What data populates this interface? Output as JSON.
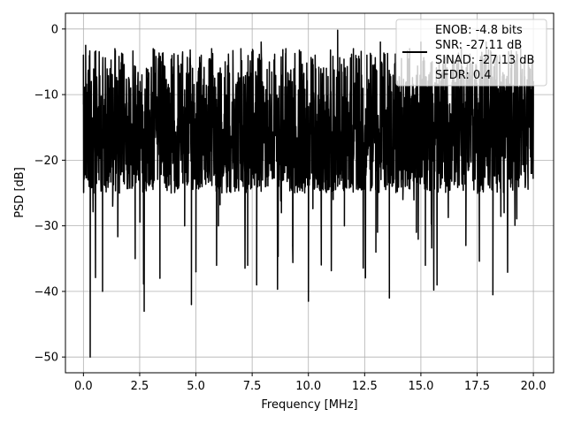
{
  "chart_data": {
    "type": "line",
    "xlabel": "Frequency [MHz]",
    "ylabel": "PSD [dB]",
    "xlim": [
      -0.8,
      20.9
    ],
    "ylim": [
      -52.4,
      2.4
    ],
    "xticks": [
      0.0,
      2.5,
      5.0,
      7.5,
      10.0,
      12.5,
      15.0,
      17.5,
      20.0
    ],
    "xtick_labels": [
      "0.0",
      "2.5",
      "5.0",
      "7.5",
      "10.0",
      "12.5",
      "15.0",
      "17.5",
      "20.0"
    ],
    "yticks": [
      0,
      -10,
      -20,
      -30,
      -40,
      -50
    ],
    "ytick_labels": [
      "0",
      "−10",
      "−20",
      "−30",
      "−40",
      "−50"
    ],
    "grid": true,
    "legend_position": "top-right",
    "legend": {
      "lines": [
        "ENOB: -4.8 bits",
        "SNR: -27.11 dB",
        "SINAD: -27.13 dB",
        "SFDR: 0.4"
      ]
    },
    "series": [
      {
        "color": "#000000",
        "description_level": "noise floor fluctuating mostly between -25 and -2 dB across 0-20 MHz",
        "x": [
          0.0,
          0.05,
          0.1,
          0.2,
          0.3,
          0.35,
          0.5,
          0.7,
          0.85,
          1.0,
          1.05,
          1.3,
          1.4,
          1.6,
          1.8,
          2.0,
          2.1,
          2.3,
          2.5,
          2.7,
          2.8,
          3.0,
          3.1,
          3.4,
          3.6,
          3.9,
          4.2,
          4.5,
          4.8,
          4.85,
          5.0,
          5.1,
          5.4,
          5.7,
          6.0,
          6.3,
          6.7,
          7.0,
          7.3,
          7.5,
          7.7,
          7.9,
          8.2,
          8.5,
          8.8,
          9.0,
          9.3,
          9.7,
          10.0,
          10.3,
          10.5,
          10.8,
          11.1,
          11.3,
          11.6,
          12.0,
          12.3,
          12.6,
          13.0,
          13.2,
          13.6,
          13.9,
          14.2,
          14.5,
          14.8,
          15.0,
          15.2,
          15.5,
          15.8,
          16.1,
          16.4,
          16.8,
          17.0,
          17.3,
          17.6,
          17.9,
          18.2,
          18.5,
          18.7,
          19.0,
          19.3,
          19.6,
          19.9,
          20.0
        ],
        "y": [
          -4,
          -20,
          -2.5,
          -23,
          -50,
          -8,
          -25,
          -5,
          -40,
          -13,
          -10,
          -27,
          -3,
          -25,
          -6,
          -22,
          -9,
          -35,
          -12,
          -43,
          -6,
          -20,
          -3,
          -38,
          -10,
          -25,
          -4,
          -30,
          -42,
          -6,
          -37,
          -9,
          -22,
          -3,
          -30,
          -5,
          -24,
          -3,
          -36,
          -8,
          -39,
          -2,
          -23,
          -5,
          -28,
          -3,
          -33,
          -7,
          -41.5,
          -4,
          -22,
          -6,
          -26,
          -0.2,
          -30,
          -3,
          -21,
          -4,
          -34,
          -2,
          -41,
          -5,
          -26,
          -3,
          -31,
          -2,
          -36,
          -5,
          -22,
          -6,
          -20,
          -3,
          -33,
          -5,
          -25,
          -2,
          -40.5,
          -4,
          -28,
          -6,
          -23,
          -5,
          -22,
          -8
        ]
      }
    ]
  }
}
